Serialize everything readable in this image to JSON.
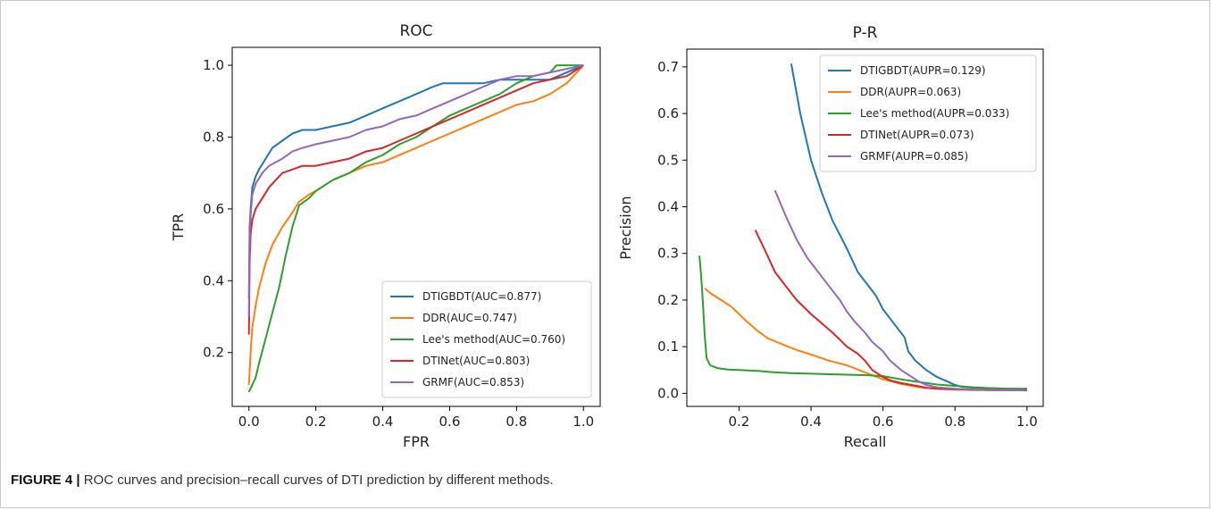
{
  "figure": {
    "caption_label": "FIGURE 4 |",
    "caption_text": "ROC curves and precision–recall curves of DTI prediction by different methods."
  },
  "chart_data": [
    {
      "type": "line",
      "title": "ROC",
      "xlabel": "FPR",
      "ylabel": "TPR",
      "xlim": [
        -0.05,
        1.05
      ],
      "ylim": [
        0.05,
        1.05
      ],
      "xticks": [
        0.0,
        0.2,
        0.4,
        0.6,
        0.8,
        1.0
      ],
      "xtick_labels": [
        "0.0",
        "0.2",
        "0.4",
        "0.6",
        "0.8",
        "1.0"
      ],
      "yticks": [
        0.2,
        0.4,
        0.6,
        0.8,
        1.0
      ],
      "ytick_labels": [
        "0.2",
        "0.4",
        "0.6",
        "0.8",
        "1.0"
      ],
      "grid": false,
      "legend_position": "bottom-right",
      "series": [
        {
          "name": "DTIGBDT(AUC=0.877)",
          "color": "#1f77b4",
          "x": [
            0,
            0.002,
            0.005,
            0.01,
            0.02,
            0.03,
            0.05,
            0.07,
            0.1,
            0.13,
            0.16,
            0.2,
            0.25,
            0.3,
            0.35,
            0.4,
            0.45,
            0.5,
            0.55,
            0.58,
            0.6,
            0.65,
            0.7,
            0.75,
            0.8,
            0.85,
            0.9,
            0.95,
            1.0
          ],
          "y": [
            0.35,
            0.55,
            0.6,
            0.66,
            0.69,
            0.71,
            0.74,
            0.77,
            0.79,
            0.81,
            0.82,
            0.82,
            0.83,
            0.84,
            0.86,
            0.88,
            0.9,
            0.92,
            0.94,
            0.95,
            0.95,
            0.95,
            0.95,
            0.96,
            0.96,
            0.96,
            0.96,
            0.98,
            1.0
          ]
        },
        {
          "name": "DDR(AUC=0.747)",
          "color": "#ff7f0e",
          "x": [
            0,
            0.005,
            0.01,
            0.02,
            0.03,
            0.05,
            0.07,
            0.1,
            0.13,
            0.15,
            0.18,
            0.2,
            0.25,
            0.3,
            0.35,
            0.4,
            0.45,
            0.5,
            0.55,
            0.6,
            0.65,
            0.7,
            0.75,
            0.8,
            0.85,
            0.9,
            0.95,
            1.0
          ],
          "y": [
            0.11,
            0.2,
            0.27,
            0.33,
            0.38,
            0.45,
            0.5,
            0.55,
            0.59,
            0.62,
            0.64,
            0.65,
            0.68,
            0.7,
            0.72,
            0.73,
            0.75,
            0.77,
            0.79,
            0.81,
            0.83,
            0.85,
            0.87,
            0.89,
            0.9,
            0.92,
            0.95,
            1.0
          ]
        },
        {
          "name": "Lee's method(AUC=0.760)",
          "color": "#2ca02c",
          "x": [
            0,
            0.01,
            0.02,
            0.03,
            0.05,
            0.07,
            0.09,
            0.11,
            0.13,
            0.15,
            0.18,
            0.2,
            0.25,
            0.3,
            0.35,
            0.4,
            0.45,
            0.5,
            0.55,
            0.6,
            0.65,
            0.7,
            0.75,
            0.8,
            0.85,
            0.9,
            0.92,
            0.95,
            1.0
          ],
          "y": [
            0.09,
            0.11,
            0.13,
            0.17,
            0.24,
            0.31,
            0.38,
            0.47,
            0.55,
            0.61,
            0.63,
            0.65,
            0.68,
            0.7,
            0.73,
            0.75,
            0.78,
            0.8,
            0.83,
            0.86,
            0.88,
            0.9,
            0.92,
            0.95,
            0.97,
            0.98,
            1.0,
            1.0,
            1.0
          ]
        },
        {
          "name": "DTINet(AUC=0.803)",
          "color": "#d62728",
          "x": [
            0,
            0.002,
            0.005,
            0.01,
            0.02,
            0.04,
            0.06,
            0.08,
            0.1,
            0.13,
            0.16,
            0.2,
            0.25,
            0.3,
            0.35,
            0.4,
            0.45,
            0.5,
            0.55,
            0.6,
            0.65,
            0.7,
            0.75,
            0.8,
            0.85,
            0.9,
            0.95,
            1.0
          ],
          "y": [
            0.25,
            0.45,
            0.53,
            0.57,
            0.6,
            0.63,
            0.66,
            0.68,
            0.7,
            0.71,
            0.72,
            0.72,
            0.73,
            0.74,
            0.76,
            0.77,
            0.79,
            0.81,
            0.83,
            0.85,
            0.87,
            0.89,
            0.91,
            0.93,
            0.95,
            0.96,
            0.97,
            1.0
          ]
        },
        {
          "name": "GRMF(AUC=0.853)",
          "color": "#9467bd",
          "x": [
            0,
            0.002,
            0.005,
            0.01,
            0.02,
            0.04,
            0.06,
            0.08,
            0.1,
            0.13,
            0.16,
            0.2,
            0.25,
            0.3,
            0.35,
            0.4,
            0.45,
            0.5,
            0.55,
            0.6,
            0.65,
            0.7,
            0.75,
            0.8,
            0.85,
            0.9,
            0.95,
            1.0
          ],
          "y": [
            0.3,
            0.52,
            0.58,
            0.64,
            0.67,
            0.7,
            0.72,
            0.73,
            0.74,
            0.76,
            0.77,
            0.78,
            0.79,
            0.8,
            0.82,
            0.83,
            0.85,
            0.86,
            0.88,
            0.9,
            0.92,
            0.94,
            0.96,
            0.97,
            0.97,
            0.98,
            0.99,
            1.0
          ]
        }
      ]
    },
    {
      "type": "line",
      "title": "P-R",
      "xlabel": "Recall",
      "ylabel": "Precision",
      "xlim": [
        0.055,
        1.045
      ],
      "ylim": [
        -0.028,
        0.738
      ],
      "xticks": [
        0.2,
        0.4,
        0.6,
        0.8,
        1.0
      ],
      "xtick_labels": [
        "0.2",
        "0.4",
        "0.6",
        "0.8",
        "1.0"
      ],
      "yticks": [
        0.0,
        0.1,
        0.2,
        0.3,
        0.4,
        0.5,
        0.6,
        0.7
      ],
      "ytick_labels": [
        "0.0",
        "0.1",
        "0.2",
        "0.3",
        "0.4",
        "0.5",
        "0.6",
        "0.7"
      ],
      "grid": false,
      "legend_position": "top-right",
      "series": [
        {
          "name": "DTIGBDT(AUPR=0.129)",
          "color": "#1f77b4",
          "x": [
            0.345,
            0.37,
            0.4,
            0.43,
            0.46,
            0.5,
            0.53,
            0.55,
            0.58,
            0.6,
            0.62,
            0.64,
            0.66,
            0.67,
            0.69,
            0.72,
            0.75,
            0.78,
            0.8,
            0.82,
            0.85,
            0.9,
            0.95,
            1.0
          ],
          "y": [
            0.707,
            0.6,
            0.5,
            0.43,
            0.37,
            0.31,
            0.26,
            0.24,
            0.21,
            0.18,
            0.16,
            0.14,
            0.12,
            0.09,
            0.07,
            0.05,
            0.035,
            0.025,
            0.018,
            0.014,
            0.012,
            0.011,
            0.01,
            0.01
          ]
        },
        {
          "name": "DDR(AUPR=0.063)",
          "color": "#ff7f0e",
          "x": [
            0.105,
            0.12,
            0.15,
            0.18,
            0.2,
            0.22,
            0.25,
            0.28,
            0.32,
            0.36,
            0.4,
            0.45,
            0.5,
            0.55,
            0.6,
            0.65,
            0.7,
            0.75,
            0.8,
            0.85,
            0.9,
            0.95,
            1.0
          ],
          "y": [
            0.225,
            0.215,
            0.2,
            0.185,
            0.17,
            0.155,
            0.135,
            0.118,
            0.105,
            0.093,
            0.083,
            0.07,
            0.06,
            0.045,
            0.03,
            0.02,
            0.013,
            0.01,
            0.008,
            0.007,
            0.007,
            0.007,
            0.007
          ]
        },
        {
          "name": "Lee's method(AUPR=0.033)",
          "color": "#2ca02c",
          "x": [
            0.09,
            0.095,
            0.1,
            0.105,
            0.11,
            0.12,
            0.14,
            0.17,
            0.2,
            0.25,
            0.3,
            0.35,
            0.4,
            0.45,
            0.5,
            0.55,
            0.6,
            0.65,
            0.7,
            0.75,
            0.8,
            0.85,
            0.9,
            0.95,
            1.0
          ],
          "y": [
            0.295,
            0.25,
            0.19,
            0.12,
            0.075,
            0.06,
            0.054,
            0.051,
            0.05,
            0.048,
            0.045,
            0.043,
            0.042,
            0.041,
            0.04,
            0.039,
            0.037,
            0.03,
            0.024,
            0.019,
            0.016,
            0.013,
            0.011,
            0.01,
            0.009
          ]
        },
        {
          "name": "DTINet(AUPR=0.073)",
          "color": "#d62728",
          "x": [
            0.245,
            0.27,
            0.3,
            0.33,
            0.36,
            0.4,
            0.43,
            0.46,
            0.48,
            0.5,
            0.53,
            0.55,
            0.57,
            0.6,
            0.62,
            0.65,
            0.68,
            0.7,
            0.72,
            0.75,
            0.8,
            0.85,
            0.9,
            0.95,
            1.0
          ],
          "y": [
            0.35,
            0.31,
            0.26,
            0.23,
            0.2,
            0.17,
            0.15,
            0.13,
            0.115,
            0.1,
            0.085,
            0.07,
            0.05,
            0.035,
            0.028,
            0.022,
            0.018,
            0.015,
            0.012,
            0.01,
            0.009,
            0.008,
            0.007,
            0.007,
            0.007
          ]
        },
        {
          "name": "GRMF(AUPR=0.085)",
          "color": "#9467bd",
          "x": [
            0.3,
            0.33,
            0.36,
            0.39,
            0.42,
            0.45,
            0.48,
            0.5,
            0.52,
            0.55,
            0.57,
            0.6,
            0.62,
            0.65,
            0.68,
            0.7,
            0.72,
            0.75,
            0.8,
            0.85,
            0.9,
            0.95,
            1.0
          ],
          "y": [
            0.435,
            0.38,
            0.33,
            0.29,
            0.26,
            0.23,
            0.2,
            0.175,
            0.155,
            0.13,
            0.11,
            0.09,
            0.07,
            0.05,
            0.035,
            0.025,
            0.018,
            0.013,
            0.01,
            0.008,
            0.007,
            0.007,
            0.006
          ]
        }
      ]
    }
  ]
}
